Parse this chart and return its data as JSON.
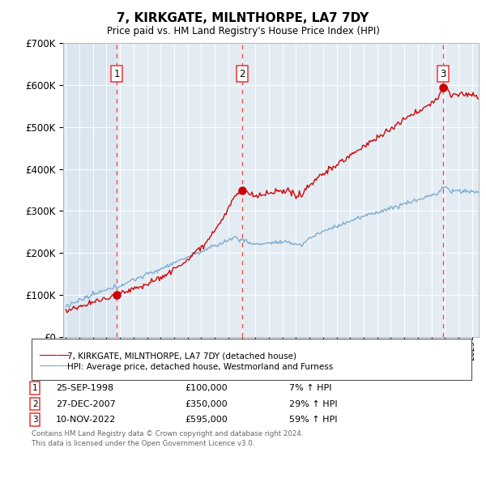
{
  "title": "7, KIRKGATE, MILNTHORPE, LA7 7DY",
  "subtitle": "Price paid vs. HM Land Registry's House Price Index (HPI)",
  "background_color": "#ffffff",
  "plot_bg_color": "#e8f0f8",
  "grid_color": "#ffffff",
  "sale_prices": [
    100000,
    350000,
    595000
  ],
  "sale_labels": [
    "1",
    "2",
    "3"
  ],
  "sale_year_floats": [
    1998.75,
    2008.0,
    2022.875
  ],
  "sale_info": [
    [
      "1",
      "25-SEP-1998",
      "£100,000",
      "7% ↑ HPI"
    ],
    [
      "2",
      "27-DEC-2007",
      "£350,000",
      "29% ↑ HPI"
    ],
    [
      "3",
      "10-NOV-2022",
      "£595,000",
      "59% ↑ HPI"
    ]
  ],
  "legend_line1": "7, KIRKGATE, MILNTHORPE, LA7 7DY (detached house)",
  "legend_line2": "HPI: Average price, detached house, Westmorland and Furness",
  "footer1": "Contains HM Land Registry data © Crown copyright and database right 2024.",
  "footer2": "This data is licensed under the Open Government Licence v3.0.",
  "ylim": [
    0,
    700000
  ],
  "yticks": [
    0,
    100000,
    200000,
    300000,
    400000,
    500000,
    600000,
    700000
  ],
  "xmin": 1995.0,
  "xmax": 2025.5,
  "red_color": "#cc0000",
  "blue_color": "#7aaad0",
  "vline_color": "#ee3333",
  "shading_color": "#dce6f0",
  "shade_between_color": "#e8eff8"
}
